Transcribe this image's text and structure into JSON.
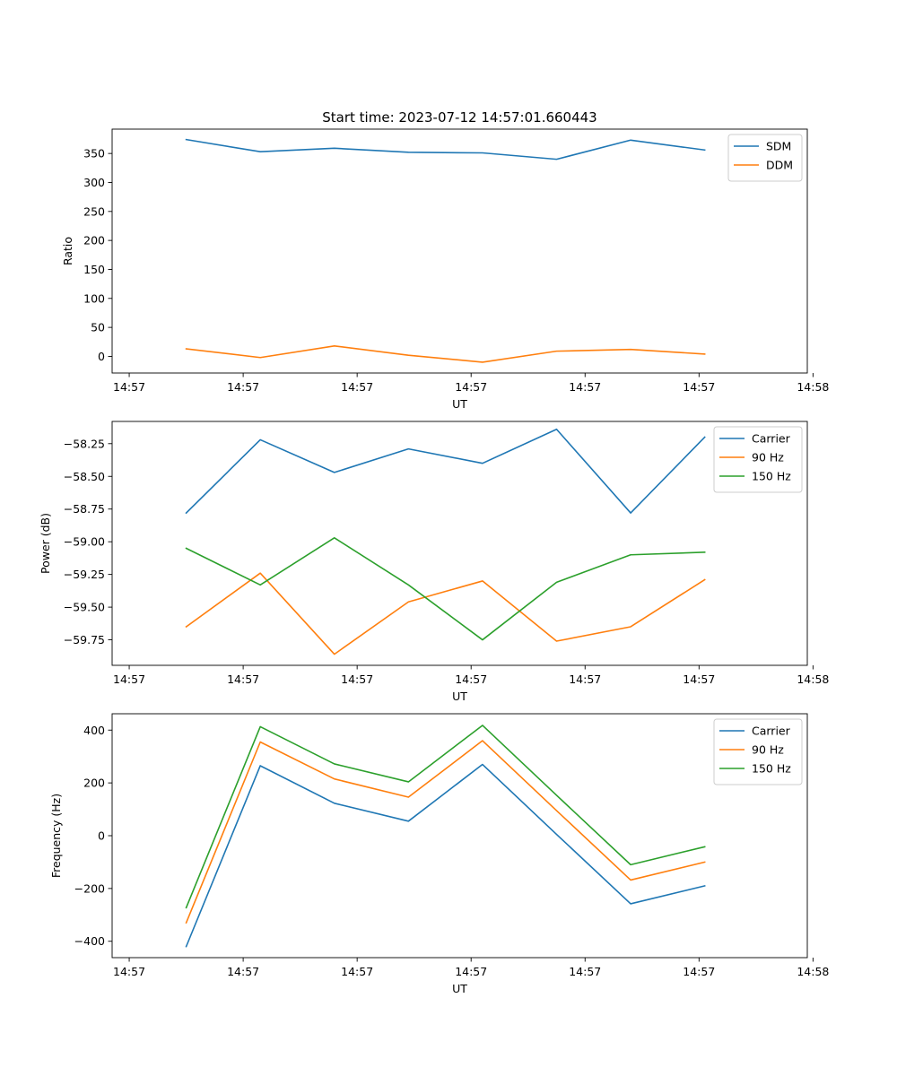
{
  "figure_title": "Start time: 2023-07-12 14:57:01.660443",
  "chart_data": [
    {
      "type": "line",
      "xlabel": "UT",
      "ylabel": "Ratio",
      "x": [
        0.5,
        1.15,
        1.8,
        2.45,
        3.1,
        3.75,
        4.4,
        5.05
      ],
      "xlim": [
        -0.15,
        5.95
      ],
      "x_ticks": [
        0,
        1,
        2,
        3,
        4,
        5,
        6
      ],
      "x_tick_labels": [
        "14:57",
        "14:57",
        "14:57",
        "14:57",
        "14:57",
        "14:57",
        "14:58"
      ],
      "ylim": [
        -28.7,
        392
      ],
      "y_ticks": [
        0,
        50,
        100,
        150,
        200,
        250,
        300,
        350
      ],
      "y_tick_labels": [
        "0",
        "50",
        "100",
        "150",
        "200",
        "250",
        "300",
        "350"
      ],
      "legend_position": "top-right",
      "series": [
        {
          "name": "SDM",
          "color": "#1f77b4",
          "values": [
            374,
            353,
            359,
            352,
            351,
            340,
            373,
            356
          ]
        },
        {
          "name": "DDM",
          "color": "#ff7f0e",
          "values": [
            13,
            -2,
            18,
            2,
            -10,
            9,
            12,
            4
          ]
        }
      ]
    },
    {
      "type": "line",
      "xlabel": "UT",
      "ylabel": "Power (dB)",
      "x": [
        0.5,
        1.15,
        1.8,
        2.45,
        3.1,
        3.75,
        4.4,
        5.05
      ],
      "xlim": [
        -0.15,
        5.95
      ],
      "x_ticks": [
        0,
        1,
        2,
        3,
        4,
        5,
        6
      ],
      "x_tick_labels": [
        "14:57",
        "14:57",
        "14:57",
        "14:57",
        "14:57",
        "14:57",
        "14:58"
      ],
      "ylim": [
        -59.945,
        -58.08
      ],
      "y_ticks": [
        -59.75,
        -59.5,
        -59.25,
        -59.0,
        -58.75,
        -58.5,
        -58.25
      ],
      "y_tick_labels": [
        "−59.75",
        "−59.50",
        "−59.25",
        "−59.00",
        "−58.75",
        "−58.50",
        "−58.25"
      ],
      "legend_position": "top-right",
      "series": [
        {
          "name": "Carrier",
          "color": "#1f77b4",
          "values": [
            -58.78,
            -58.22,
            -58.47,
            -58.29,
            -58.4,
            -58.14,
            -58.78,
            -58.2
          ]
        },
        {
          "name": "90 Hz",
          "color": "#ff7f0e",
          "values": [
            -59.65,
            -59.24,
            -59.86,
            -59.46,
            -59.3,
            -59.76,
            -59.65,
            -59.29
          ]
        },
        {
          "name": "150 Hz",
          "color": "#2ca02c",
          "values": [
            -59.05,
            -59.33,
            -58.97,
            -59.33,
            -59.75,
            -59.31,
            -59.1,
            -59.08
          ]
        }
      ]
    },
    {
      "type": "line",
      "xlabel": "UT",
      "ylabel": "Frequency (Hz)",
      "x": [
        0.5,
        1.15,
        1.8,
        2.45,
        3.1,
        3.75,
        4.4,
        5.05
      ],
      "xlim": [
        -0.15,
        5.95
      ],
      "x_ticks": [
        0,
        1,
        2,
        3,
        4,
        5,
        6
      ],
      "x_tick_labels": [
        "14:57",
        "14:57",
        "14:57",
        "14:57",
        "14:57",
        "14:57",
        "14:58"
      ],
      "ylim": [
        -462,
        462
      ],
      "y_ticks": [
        -400,
        -200,
        0,
        200,
        400
      ],
      "y_tick_labels": [
        "−400",
        "−200",
        "0",
        "200",
        "400"
      ],
      "legend_position": "top-right",
      "series": [
        {
          "name": "Carrier",
          "color": "#1f77b4",
          "values": [
            -420,
            265,
            123,
            55,
            270,
            5,
            -258,
            -190
          ]
        },
        {
          "name": "90 Hz",
          "color": "#ff7f0e",
          "values": [
            -330,
            355,
            215,
            146,
            360,
            95,
            -168,
            -100
          ]
        },
        {
          "name": "150 Hz",
          "color": "#2ca02c",
          "values": [
            -273,
            413,
            272,
            204,
            418,
            153,
            -110,
            -42
          ]
        }
      ]
    }
  ]
}
